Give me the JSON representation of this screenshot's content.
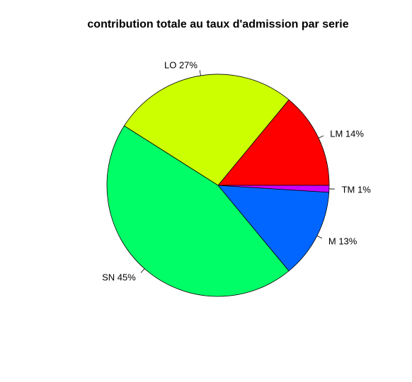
{
  "chart_data": {
    "type": "pie",
    "title": "contribution totale au taux d'admission par serie",
    "slices": [
      {
        "label": "LM 14%",
        "value": 14,
        "color": "#ff0000"
      },
      {
        "label": "LO 27%",
        "value": 27,
        "color": "#ccff00"
      },
      {
        "label": "SN 45%",
        "value": 45,
        "color": "#00ff66"
      },
      {
        "label": "M 13%",
        "value": 13,
        "color": "#0066ff"
      },
      {
        "label": "TM 1%",
        "value": 1,
        "color": "#cc00ff"
      }
    ],
    "direction": "counterclockwise",
    "start_angle_deg": 0,
    "legend": "none"
  }
}
